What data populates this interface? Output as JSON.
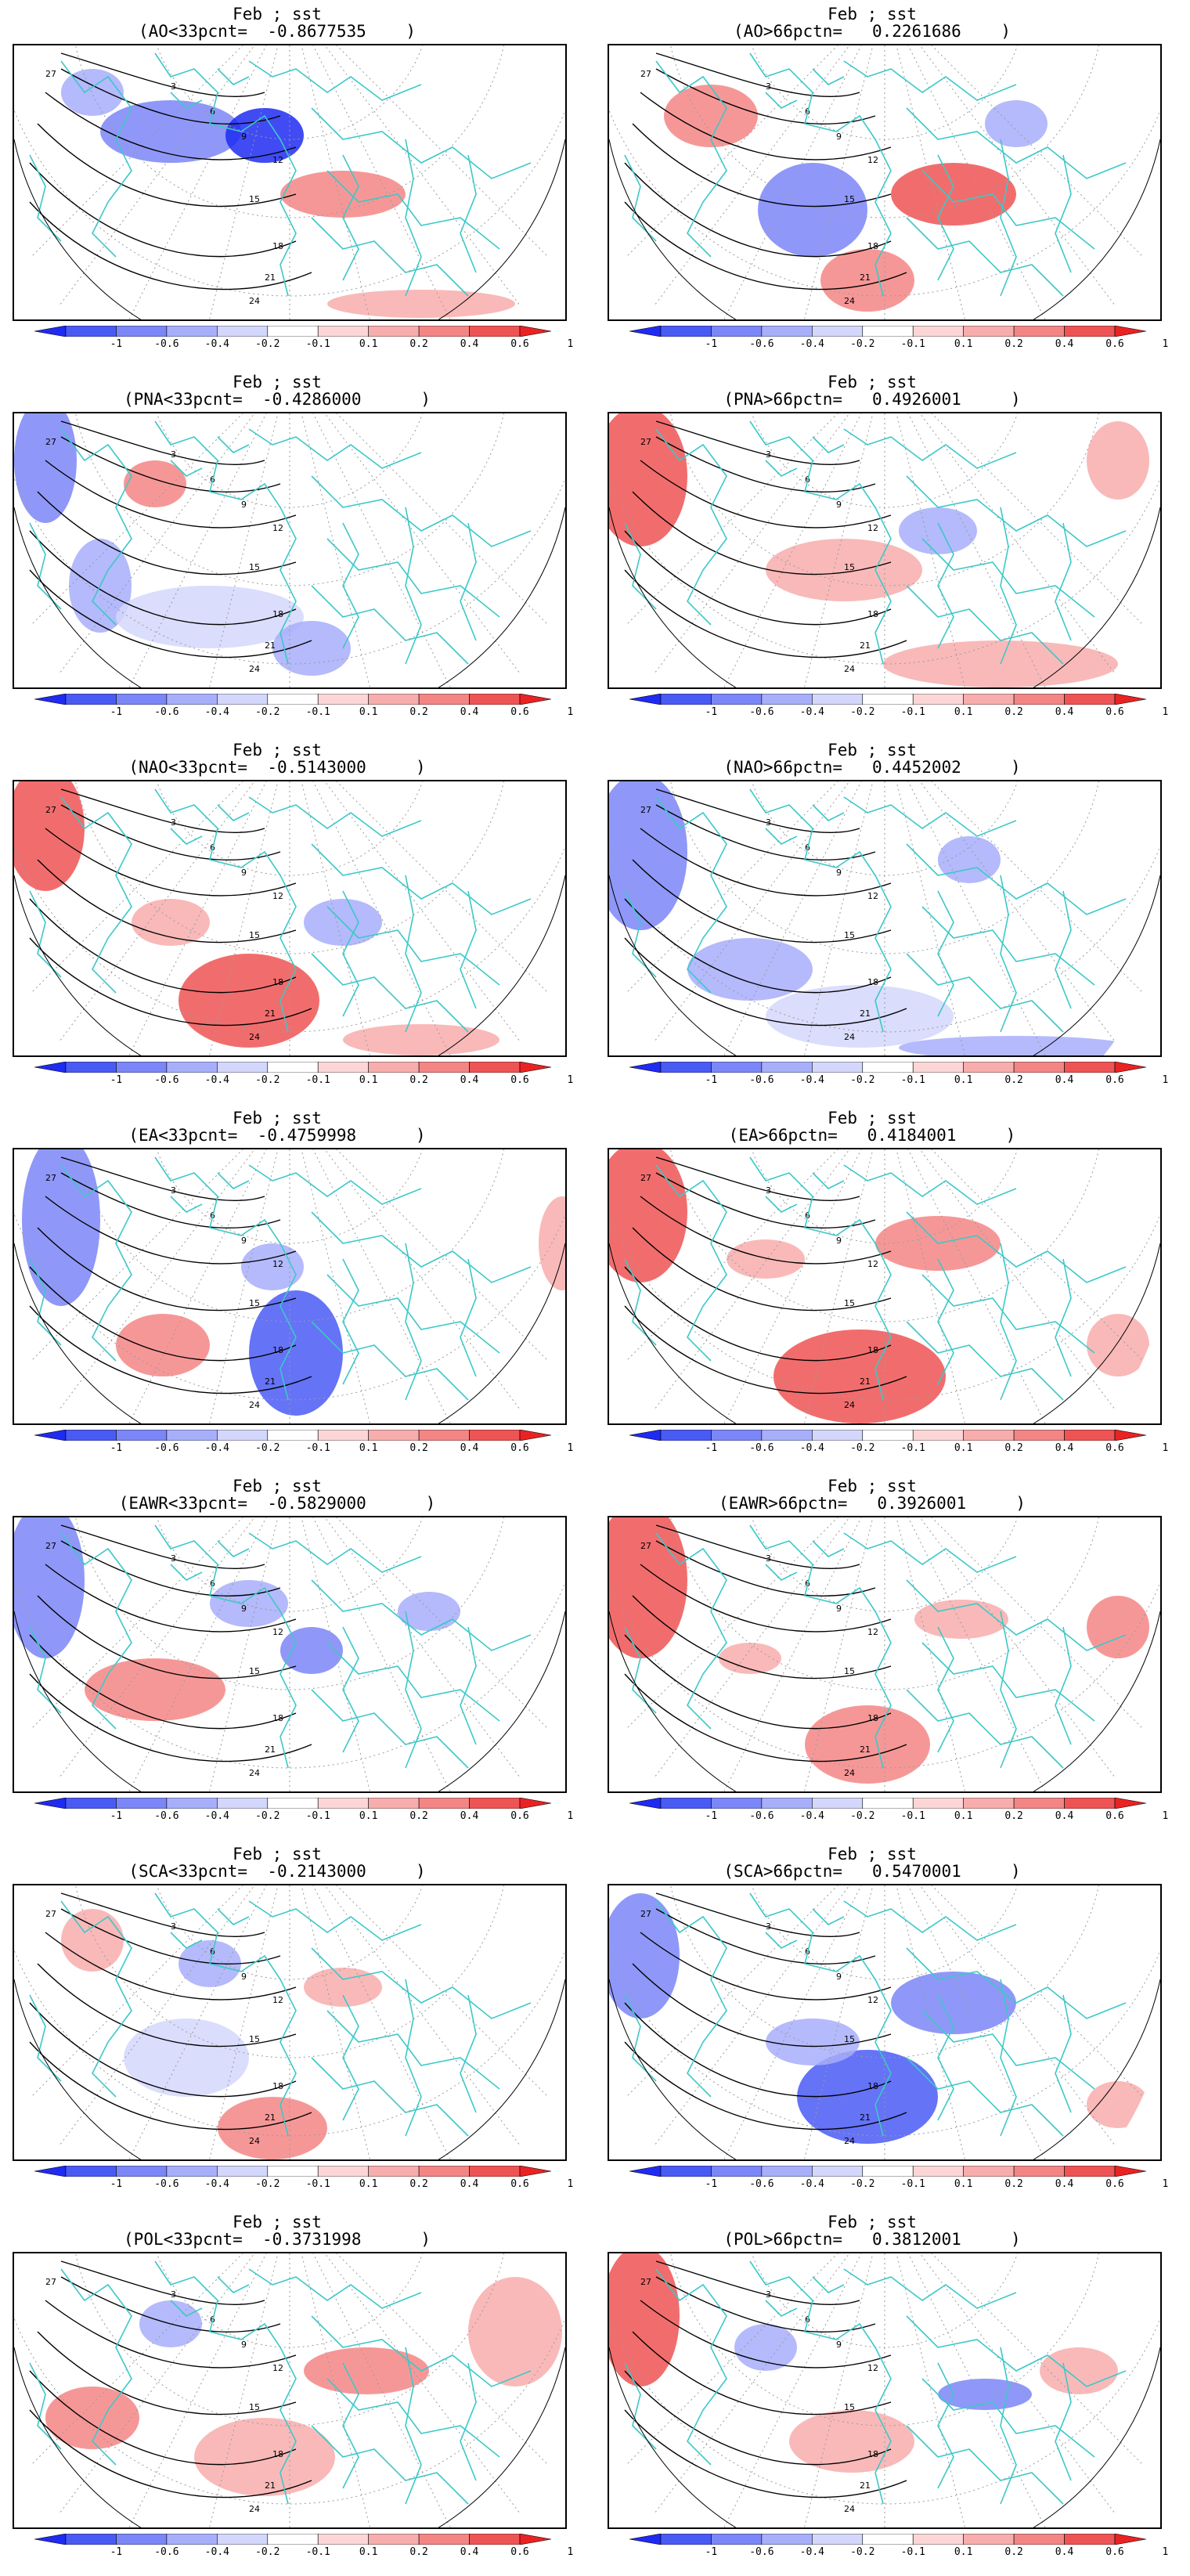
{
  "month": "Feb",
  "variable": "sst",
  "colorbar": {
    "ticks": [
      "-1",
      "-0.6",
      "-0.4",
      "-0.2",
      "-0.1",
      "0.1",
      "0.2",
      "0.4",
      "0.6",
      "1"
    ],
    "colors": [
      "#1f2bf2",
      "#4a5af5",
      "#7b86f7",
      "#a7aefa",
      "#d4d7fc",
      "#ffffff",
      "#fcd6d6",
      "#f8adad",
      "#f48585",
      "#ef5454",
      "#ea2222"
    ]
  },
  "contour_labels": [
    "3",
    "6",
    "9",
    "12",
    "15",
    "18",
    "21",
    "24",
    "27"
  ],
  "colors": {
    "coast": "#3cc8c8",
    "contour": "#000000",
    "grid": "#9a9a9a"
  },
  "panels": [
    {
      "title": "Feb ; sst",
      "subtitle": "(AO<33pcnt=  -0.8677535    )"
    },
    {
      "title": "Feb ; sst",
      "subtitle": "(AO>66pctn=   0.2261686    )"
    },
    {
      "title": "Feb ; sst",
      "subtitle": "(PNA<33pcnt=  -0.4286000      )"
    },
    {
      "title": "Feb ; sst",
      "subtitle": "(PNA>66pctn=   0.4926001     )"
    },
    {
      "title": "Feb ; sst",
      "subtitle": "(NAO<33pcnt=  -0.5143000     )"
    },
    {
      "title": "Feb ; sst",
      "subtitle": "(NAO>66pctn=   0.4452002     )"
    },
    {
      "title": "Feb ; sst",
      "subtitle": "(EA<33pcnt=  -0.4759998      )"
    },
    {
      "title": "Feb ; sst",
      "subtitle": "(EA>66pctn=   0.4184001     )"
    },
    {
      "title": "Feb ; sst",
      "subtitle": "(EAWR<33pcnt=  -0.5829000      )"
    },
    {
      "title": "Feb ; sst",
      "subtitle": "(EAWR>66pctn=   0.3926001     )"
    },
    {
      "title": "Feb ; sst",
      "subtitle": "(SCA<33pcnt=  -0.2143000     )"
    },
    {
      "title": "Feb ; sst",
      "subtitle": "(SCA>66pctn=   0.5470001     )"
    },
    {
      "title": "Feb ; sst",
      "subtitle": "(POL<33pcnt=  -0.3731998      )"
    },
    {
      "title": "Feb ; sst",
      "subtitle": "(POL>66pctn=   0.3812001     )"
    }
  ]
}
